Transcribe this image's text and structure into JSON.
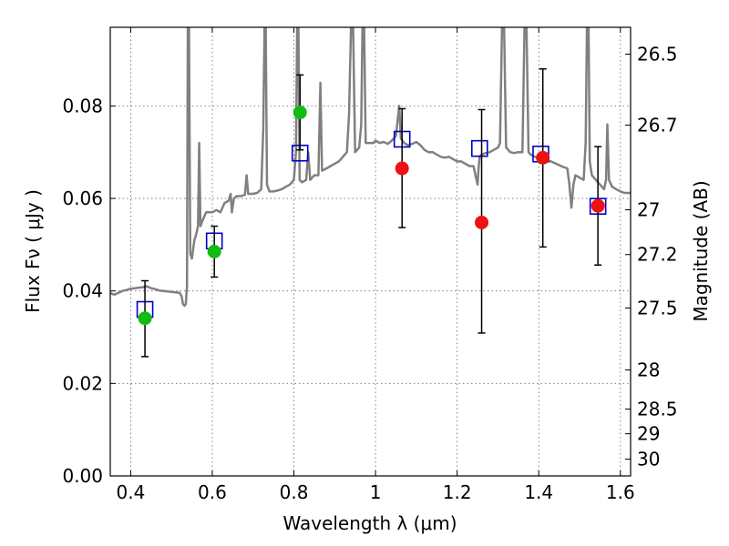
{
  "chart_data": {
    "type": "scatter",
    "xlabel": "Wavelength  λ (μm)",
    "ylabel": "Flux  Fν  ( μJy )",
    "ylabel_right": "Magnitude (AB)",
    "xlim": [
      0.35,
      1.625
    ],
    "ylim": [
      0.0,
      0.097
    ],
    "grid": true,
    "x_ticks": [
      0.4,
      0.6,
      0.8,
      1.0,
      1.2,
      1.4,
      1.6
    ],
    "x_tick_labels": [
      "0.4",
      "0.6",
      "0.8",
      "1",
      "1.2",
      "1.4",
      "1.6"
    ],
    "y_ticks": [
      0.0,
      0.02,
      0.04,
      0.06,
      0.08
    ],
    "y_tick_labels": [
      "0.00",
      "0.02",
      "0.04",
      "0.06",
      "0.08"
    ],
    "mag_ticks": [
      26.5,
      26.7,
      27,
      27.2,
      27.5,
      28,
      28.5,
      29,
      30
    ],
    "mag_tick_labels": [
      "26.5",
      "26.7",
      "27",
      "27.2",
      "27.5",
      "28",
      "28.5",
      "29",
      "30"
    ],
    "colors": {
      "spectrum": "#808080",
      "model_box": "#0000cc",
      "green_points": "#11bb11",
      "red_points": "#ee1111",
      "errorbar": "#000000"
    },
    "series": [
      {
        "type": "line",
        "color": "#808080",
        "points": [
          [
            0.35,
            0.0395
          ],
          [
            0.36,
            0.0392
          ],
          [
            0.37,
            0.0396
          ],
          [
            0.38,
            0.04
          ],
          [
            0.39,
            0.0402
          ],
          [
            0.4,
            0.0405
          ],
          [
            0.41,
            0.0406
          ],
          [
            0.42,
            0.0407
          ],
          [
            0.43,
            0.0408
          ],
          [
            0.44,
            0.041
          ],
          [
            0.45,
            0.0406
          ],
          [
            0.46,
            0.0404
          ],
          [
            0.47,
            0.0401
          ],
          [
            0.48,
            0.04
          ],
          [
            0.49,
            0.0399
          ],
          [
            0.5,
            0.0398
          ],
          [
            0.51,
            0.0397
          ],
          [
            0.52,
            0.0396
          ],
          [
            0.525,
            0.0388
          ],
          [
            0.528,
            0.0372
          ],
          [
            0.532,
            0.0368
          ],
          [
            0.535,
            0.0372
          ],
          [
            0.538,
            0.041
          ],
          [
            0.54,
            0.097
          ],
          [
            0.543,
            0.097
          ],
          [
            0.546,
            0.048
          ],
          [
            0.55,
            0.047
          ],
          [
            0.556,
            0.051
          ],
          [
            0.56,
            0.052
          ],
          [
            0.565,
            0.054
          ],
          [
            0.568,
            0.072
          ],
          [
            0.571,
            0.054
          ],
          [
            0.575,
            0.055
          ],
          [
            0.585,
            0.057
          ],
          [
            0.6,
            0.057
          ],
          [
            0.61,
            0.0575
          ],
          [
            0.62,
            0.057
          ],
          [
            0.63,
            0.059
          ],
          [
            0.64,
            0.0595
          ],
          [
            0.645,
            0.061
          ],
          [
            0.648,
            0.057
          ],
          [
            0.653,
            0.06
          ],
          [
            0.66,
            0.0605
          ],
          [
            0.67,
            0.0605
          ],
          [
            0.68,
            0.0608
          ],
          [
            0.684,
            0.065
          ],
          [
            0.688,
            0.061
          ],
          [
            0.7,
            0.061
          ],
          [
            0.71,
            0.0612
          ],
          [
            0.72,
            0.062
          ],
          [
            0.725,
            0.075
          ],
          [
            0.728,
            0.097
          ],
          [
            0.731,
            0.097
          ],
          [
            0.734,
            0.063
          ],
          [
            0.74,
            0.0615
          ],
          [
            0.75,
            0.0615
          ],
          [
            0.76,
            0.0617
          ],
          [
            0.77,
            0.062
          ],
          [
            0.78,
            0.0625
          ],
          [
            0.79,
            0.063
          ],
          [
            0.8,
            0.064
          ],
          [
            0.805,
            0.07
          ],
          [
            0.808,
            0.097
          ],
          [
            0.811,
            0.097
          ],
          [
            0.814,
            0.064
          ],
          [
            0.82,
            0.0635
          ],
          [
            0.83,
            0.064
          ],
          [
            0.835,
            0.07
          ],
          [
            0.84,
            0.064
          ],
          [
            0.85,
            0.065
          ],
          [
            0.86,
            0.065
          ],
          [
            0.865,
            0.085
          ],
          [
            0.869,
            0.066
          ],
          [
            0.88,
            0.0665
          ],
          [
            0.89,
            0.067
          ],
          [
            0.9,
            0.0675
          ],
          [
            0.91,
            0.068
          ],
          [
            0.92,
            0.069
          ],
          [
            0.93,
            0.07
          ],
          [
            0.935,
            0.078
          ],
          [
            0.94,
            0.097
          ],
          [
            0.945,
            0.097
          ],
          [
            0.95,
            0.07
          ],
          [
            0.96,
            0.071
          ],
          [
            0.965,
            0.076
          ],
          [
            0.968,
            0.097
          ],
          [
            0.972,
            0.097
          ],
          [
            0.976,
            0.072
          ],
          [
            0.985,
            0.072
          ],
          [
            0.995,
            0.072
          ],
          [
            1.0,
            0.0725
          ],
          [
            1.01,
            0.072
          ],
          [
            1.02,
            0.0722
          ],
          [
            1.03,
            0.0718
          ],
          [
            1.04,
            0.0725
          ],
          [
            1.05,
            0.0735
          ],
          [
            1.058,
            0.08
          ],
          [
            1.062,
            0.073
          ],
          [
            1.07,
            0.072
          ],
          [
            1.08,
            0.0715
          ],
          [
            1.09,
            0.0718
          ],
          [
            1.1,
            0.0722
          ],
          [
            1.11,
            0.0715
          ],
          [
            1.12,
            0.0705
          ],
          [
            1.13,
            0.07
          ],
          [
            1.14,
            0.07
          ],
          [
            1.15,
            0.0695
          ],
          [
            1.16,
            0.069
          ],
          [
            1.17,
            0.0688
          ],
          [
            1.18,
            0.069
          ],
          [
            1.19,
            0.0685
          ],
          [
            1.2,
            0.068
          ],
          [
            1.21,
            0.068
          ],
          [
            1.22,
            0.0675
          ],
          [
            1.23,
            0.067
          ],
          [
            1.24,
            0.067
          ],
          [
            1.245,
            0.065
          ],
          [
            1.25,
            0.063
          ],
          [
            1.252,
            0.066
          ],
          [
            1.255,
            0.069
          ],
          [
            1.26,
            0.0695
          ],
          [
            1.27,
            0.0698
          ],
          [
            1.28,
            0.07
          ],
          [
            1.29,
            0.0705
          ],
          [
            1.3,
            0.071
          ],
          [
            1.305,
            0.072
          ],
          [
            1.31,
            0.097
          ],
          [
            1.315,
            0.097
          ],
          [
            1.32,
            0.071
          ],
          [
            1.33,
            0.07
          ],
          [
            1.34,
            0.0698
          ],
          [
            1.35,
            0.07
          ],
          [
            1.36,
            0.07
          ],
          [
            1.365,
            0.097
          ],
          [
            1.37,
            0.097
          ],
          [
            1.375,
            0.07
          ],
          [
            1.38,
            0.0695
          ],
          [
            1.39,
            0.069
          ],
          [
            1.4,
            0.0688
          ],
          [
            1.41,
            0.0686
          ],
          [
            1.42,
            0.0682
          ],
          [
            1.43,
            0.068
          ],
          [
            1.44,
            0.0676
          ],
          [
            1.45,
            0.0672
          ],
          [
            1.46,
            0.0668
          ],
          [
            1.47,
            0.0665
          ],
          [
            1.475,
            0.063
          ],
          [
            1.48,
            0.058
          ],
          [
            1.485,
            0.063
          ],
          [
            1.49,
            0.065
          ],
          [
            1.5,
            0.0645
          ],
          [
            1.51,
            0.064
          ],
          [
            1.515,
            0.072
          ],
          [
            1.518,
            0.097
          ],
          [
            1.522,
            0.097
          ],
          [
            1.525,
            0.068
          ],
          [
            1.53,
            0.065
          ],
          [
            1.54,
            0.064
          ],
          [
            1.55,
            0.063
          ],
          [
            1.56,
            0.062
          ],
          [
            1.565,
            0.064
          ],
          [
            1.568,
            0.076
          ],
          [
            1.572,
            0.064
          ],
          [
            1.58,
            0.0625
          ],
          [
            1.59,
            0.062
          ],
          [
            1.6,
            0.0615
          ],
          [
            1.61,
            0.0612
          ],
          [
            1.625,
            0.0612
          ]
        ]
      },
      {
        "type": "model_boxes",
        "color": "#0000cc",
        "points": [
          {
            "x": 0.435,
            "y": 0.036
          },
          {
            "x": 0.605,
            "y": 0.0508
          },
          {
            "x": 0.815,
            "y": 0.0698
          },
          {
            "x": 1.065,
            "y": 0.0728
          },
          {
            "x": 1.255,
            "y": 0.0708
          },
          {
            "x": 1.405,
            "y": 0.0696
          },
          {
            "x": 1.545,
            "y": 0.0583
          }
        ]
      },
      {
        "type": "points",
        "color": "#11bb11",
        "points": [
          {
            "x": 0.435,
            "y": 0.0341,
            "err_lo": 0.0258,
            "err_hi": 0.0422
          },
          {
            "x": 0.605,
            "y": 0.0485,
            "err_lo": 0.043,
            "err_hi": 0.054
          },
          {
            "x": 0.815,
            "y": 0.0786,
            "err_lo": 0.0705,
            "err_hi": 0.0867
          }
        ]
      },
      {
        "type": "points",
        "color": "#ee1111",
        "points": [
          {
            "x": 1.065,
            "y": 0.0665,
            "err_lo": 0.0537,
            "err_hi": 0.0794
          },
          {
            "x": 1.26,
            "y": 0.0548,
            "err_lo": 0.0309,
            "err_hi": 0.0792
          },
          {
            "x": 1.41,
            "y": 0.0688,
            "err_lo": 0.0495,
            "err_hi": 0.088
          },
          {
            "x": 1.545,
            "y": 0.0584,
            "err_lo": 0.0456,
            "err_hi": 0.0712
          }
        ]
      }
    ]
  }
}
